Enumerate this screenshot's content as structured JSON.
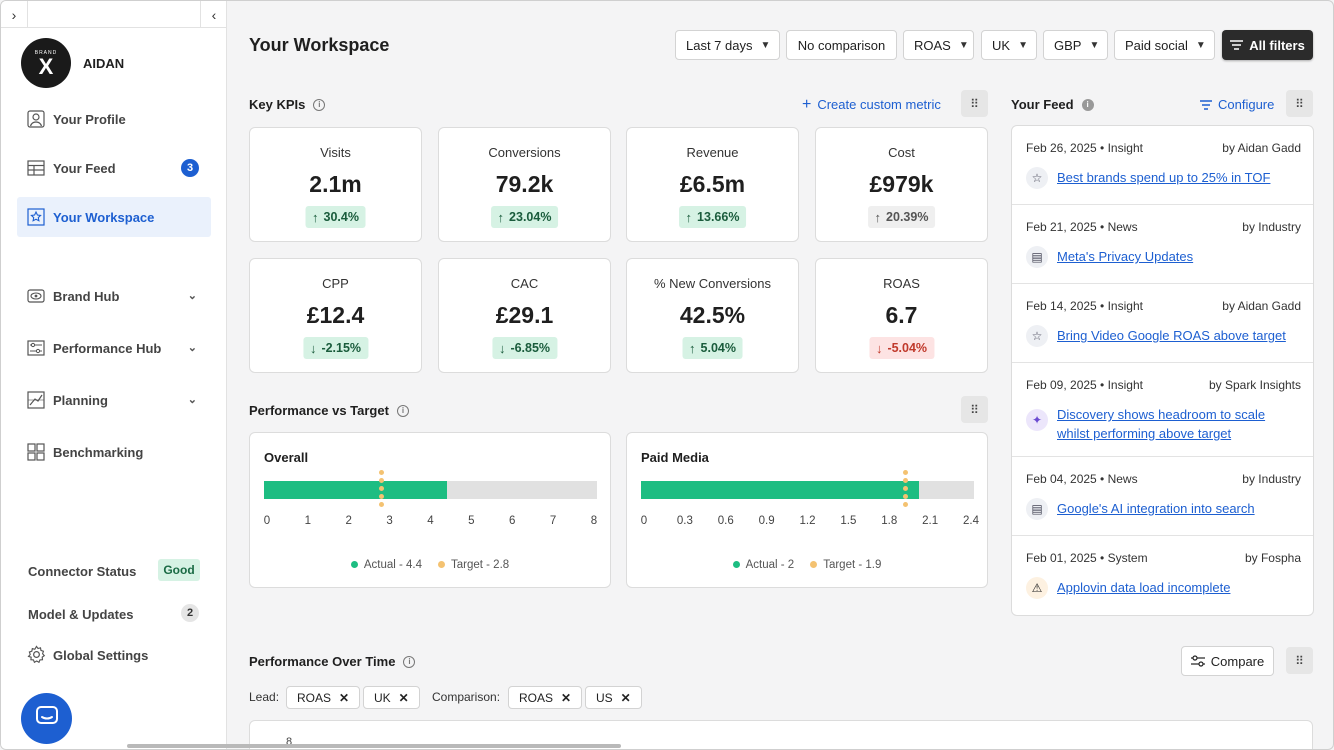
{
  "sidebar": {
    "brand": {
      "logo_top": "BRAND",
      "logo_mark": "X",
      "name": "AIDAN"
    },
    "nav": [
      {
        "label": "Your Profile",
        "icon": "user-icon"
      },
      {
        "label": "Your Feed",
        "icon": "feed-icon",
        "badge": "3"
      },
      {
        "label": "Your Workspace",
        "icon": "star-icon",
        "active": true
      },
      {
        "label": "Brand Hub",
        "icon": "eye-icon"
      },
      {
        "label": "Performance Hub",
        "icon": "sliders-icon"
      },
      {
        "label": "Planning",
        "icon": "planning-icon"
      },
      {
        "label": "Benchmarking",
        "icon": "benchmark-icon"
      }
    ],
    "footer": {
      "connector_label": "Connector Status",
      "connector_status": "Good",
      "model_label": "Model & Updates",
      "model_count": "2",
      "settings_label": "Global Settings"
    }
  },
  "header": {
    "title": "Your Workspace",
    "filters": [
      "Last 7 days",
      "No comparison",
      "ROAS",
      "UK",
      "GBP",
      "Paid social"
    ],
    "all_filters": "All filters"
  },
  "kpis": {
    "title": "Key KPIs",
    "create_label": "Create custom metric",
    "cards": [
      {
        "label": "Visits",
        "value": "2.1m",
        "change": "30.4%",
        "trend": "up",
        "tone": "pos"
      },
      {
        "label": "Conversions",
        "value": "79.2k",
        "change": "23.04%",
        "trend": "up",
        "tone": "pos"
      },
      {
        "label": "Revenue",
        "value": "£6.5m",
        "change": "13.66%",
        "trend": "up",
        "tone": "pos"
      },
      {
        "label": "Cost",
        "value": "£979k",
        "change": "20.39%",
        "trend": "up",
        "tone": "neu"
      },
      {
        "label": "CPP",
        "value": "£12.4",
        "change": "-2.15%",
        "trend": "down",
        "tone": "pos"
      },
      {
        "label": "CAC",
        "value": "£29.1",
        "change": "-6.85%",
        "trend": "down",
        "tone": "pos"
      },
      {
        "label": "% New Conversions",
        "value": "42.5%",
        "change": "5.04%",
        "trend": "up",
        "tone": "pos"
      },
      {
        "label": "ROAS",
        "value": "6.7",
        "change": "-5.04%",
        "trend": "down",
        "tone": "neg"
      }
    ]
  },
  "perf_vs_target": {
    "title": "Performance vs Target",
    "panels": [
      {
        "title": "Overall",
        "actual": 4.4,
        "target": 2.8,
        "max": 8,
        "ticks": [
          "0",
          "1",
          "2",
          "3",
          "4",
          "5",
          "6",
          "7",
          "8"
        ],
        "legend_actual": "Actual - 4.4",
        "legend_target": "Target - 2.8"
      },
      {
        "title": "Paid Media",
        "actual": 2,
        "target": 1.9,
        "max": 2.4,
        "ticks": [
          "0",
          "0.3",
          "0.6",
          "0.9",
          "1.2",
          "1.5",
          "1.8",
          "2.1",
          "2.4"
        ],
        "legend_actual": "Actual - 2",
        "legend_target": "Target - 1.9"
      }
    ]
  },
  "feed": {
    "title": "Your Feed",
    "configure_label": "Configure",
    "items": [
      {
        "date": "Feb 26, 2025 • Insight",
        "by": "by Aidan Gadd",
        "icon": "star-icon",
        "text": "Best brands spend up to 25% in TOF"
      },
      {
        "date": "Feb 21, 2025  • News",
        "by": "by Industry",
        "icon": "news-icon",
        "text": "Meta's Privacy Updates"
      },
      {
        "date": "Feb 14, 2025 • Insight",
        "by": "by Aidan Gadd",
        "icon": "star-icon",
        "text": "Bring Video Google ROAS above target"
      },
      {
        "date": "Feb 09, 2025 • Insight",
        "by": "by Spark Insights",
        "icon": "sparkle-icon",
        "text": "Discovery shows headroom to scale whilst performing above target"
      },
      {
        "date": "Feb 04, 2025  • News",
        "by": "by Industry",
        "icon": "news-icon",
        "text": "Google's AI integration into search"
      },
      {
        "date": "Feb 01, 2025 • System",
        "by": "by Fospha",
        "icon": "warning-icon",
        "text": "Applovin data load incomplete"
      }
    ]
  },
  "over_time": {
    "title": "Performance Over Time",
    "compare_label": "Compare",
    "lead_label": "Lead:",
    "lead_chips": [
      "ROAS",
      "UK"
    ],
    "comparison_label": "Comparison:",
    "comparison_chips": [
      "ROAS",
      "US"
    ],
    "first_tick": "8"
  }
}
